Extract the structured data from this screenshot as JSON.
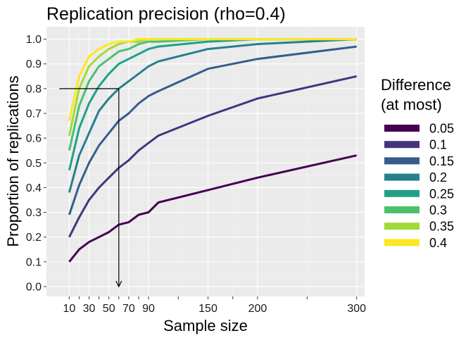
{
  "chart_data": {
    "type": "line",
    "title": "Replication precision (rho=0.4)",
    "xlabel": "Sample size",
    "ylabel": "Proportion of replications",
    "x_ticks": [
      10,
      30,
      50,
      70,
      90,
      150,
      200,
      300
    ],
    "y_ticks": [
      0.0,
      0.1,
      0.2,
      0.3,
      0.4,
      0.5,
      0.6,
      0.7,
      0.8,
      0.9,
      1.0
    ],
    "y_tick_labels": [
      "0.0",
      "0.1",
      "0.2",
      "0.3",
      "0.4",
      "0.5",
      "0.6",
      "0.7",
      "0.8",
      "0.9",
      "1.0"
    ],
    "xlim": [
      -13,
      308
    ],
    "ylim": [
      -0.04,
      1.05
    ],
    "grid": true,
    "legend_title": [
      "Difference",
      "(at most)"
    ],
    "legend_position": "right",
    "x": [
      10,
      20,
      30,
      40,
      50,
      60,
      70,
      80,
      90,
      100,
      150,
      200,
      300
    ],
    "series": [
      {
        "name": "0.05",
        "color": "#440154",
        "values": [
          0.1,
          0.15,
          0.18,
          0.2,
          0.22,
          0.25,
          0.26,
          0.29,
          0.3,
          0.34,
          0.39,
          0.44,
          0.53
        ]
      },
      {
        "name": "0.1",
        "color": "#46337E",
        "values": [
          0.2,
          0.28,
          0.35,
          0.4,
          0.44,
          0.48,
          0.51,
          0.55,
          0.58,
          0.61,
          0.69,
          0.76,
          0.85
        ]
      },
      {
        "name": "0.15",
        "color": "#365C8D",
        "values": [
          0.29,
          0.41,
          0.5,
          0.57,
          0.62,
          0.67,
          0.7,
          0.74,
          0.77,
          0.79,
          0.88,
          0.92,
          0.97
        ]
      },
      {
        "name": "0.2",
        "color": "#277F8E",
        "values": [
          0.38,
          0.53,
          0.62,
          0.71,
          0.76,
          0.8,
          0.83,
          0.86,
          0.89,
          0.91,
          0.96,
          0.98,
          1.0
        ]
      },
      {
        "name": "0.25",
        "color": "#1FA187",
        "values": [
          0.47,
          0.64,
          0.74,
          0.81,
          0.86,
          0.9,
          0.92,
          0.94,
          0.96,
          0.97,
          0.99,
          1.0,
          1.0
        ]
      },
      {
        "name": "0.3",
        "color": "#4AC16D",
        "values": [
          0.55,
          0.73,
          0.83,
          0.89,
          0.92,
          0.95,
          0.96,
          0.98,
          0.99,
          0.99,
          1.0,
          1.0,
          1.0
        ]
      },
      {
        "name": "0.35",
        "color": "#A0DA39",
        "values": [
          0.61,
          0.8,
          0.89,
          0.93,
          0.96,
          0.98,
          0.99,
          0.99,
          1.0,
          1.0,
          1.0,
          1.0,
          1.0
        ]
      },
      {
        "name": "0.4",
        "color": "#FDE725",
        "values": [
          0.67,
          0.85,
          0.93,
          0.96,
          0.98,
          0.99,
          0.99,
          1.0,
          1.0,
          1.0,
          1.0,
          1.0,
          1.0
        ]
      }
    ],
    "annotation": {
      "type": "reference-arrow",
      "y": 0.8,
      "x": 60,
      "x_from": 0
    }
  }
}
